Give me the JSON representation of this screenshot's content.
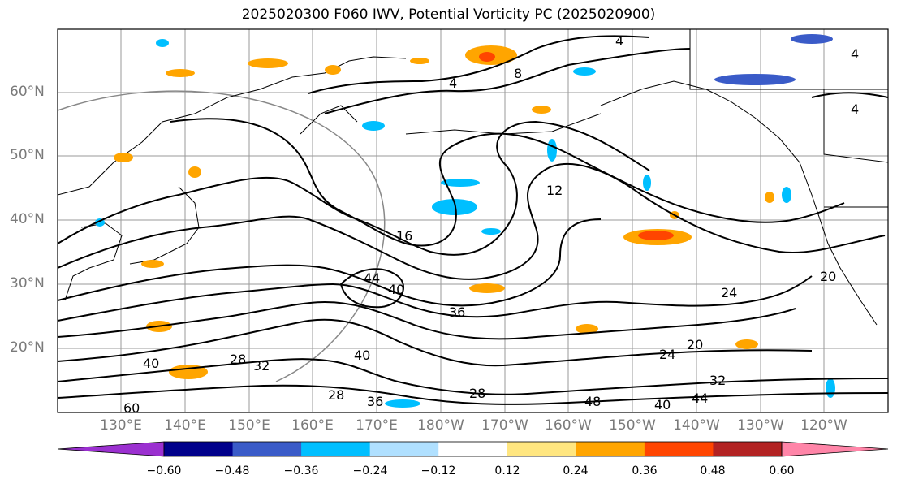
{
  "title": "2025020300 F060 IWV, Potential Vorticity PC (2025020900)",
  "lat_labels": [
    "60°N",
    "50°N",
    "40°N",
    "30°N",
    "20°N"
  ],
  "lon_labels": [
    "130°E",
    "140°E",
    "150°E",
    "160°E",
    "170°E",
    "180°W",
    "170°W",
    "160°W",
    "150°W",
    "140°W",
    "130°W",
    "120°W"
  ],
  "contour_labels": [
    "4",
    "4",
    "4",
    "4",
    "8",
    "12",
    "16",
    "20",
    "20",
    "24",
    "24",
    "28",
    "28",
    "28",
    "32",
    "32",
    "36",
    "36",
    "40",
    "40",
    "40",
    "40",
    "44",
    "44",
    "48",
    "60"
  ],
  "colorbar": {
    "ticks": [
      "−0.60",
      "−0.48",
      "−0.36",
      "−0.24",
      "−0.12",
      "0.12",
      "0.24",
      "0.36",
      "0.48",
      "0.60"
    ],
    "colors": [
      "#9b30d0",
      "#00008b",
      "#3a5bc8",
      "#00bfff",
      "#b0e0ff",
      "#ffffff",
      "#ffe680",
      "#ffa500",
      "#ff4500",
      "#b22222",
      "#ff85a8"
    ]
  }
}
